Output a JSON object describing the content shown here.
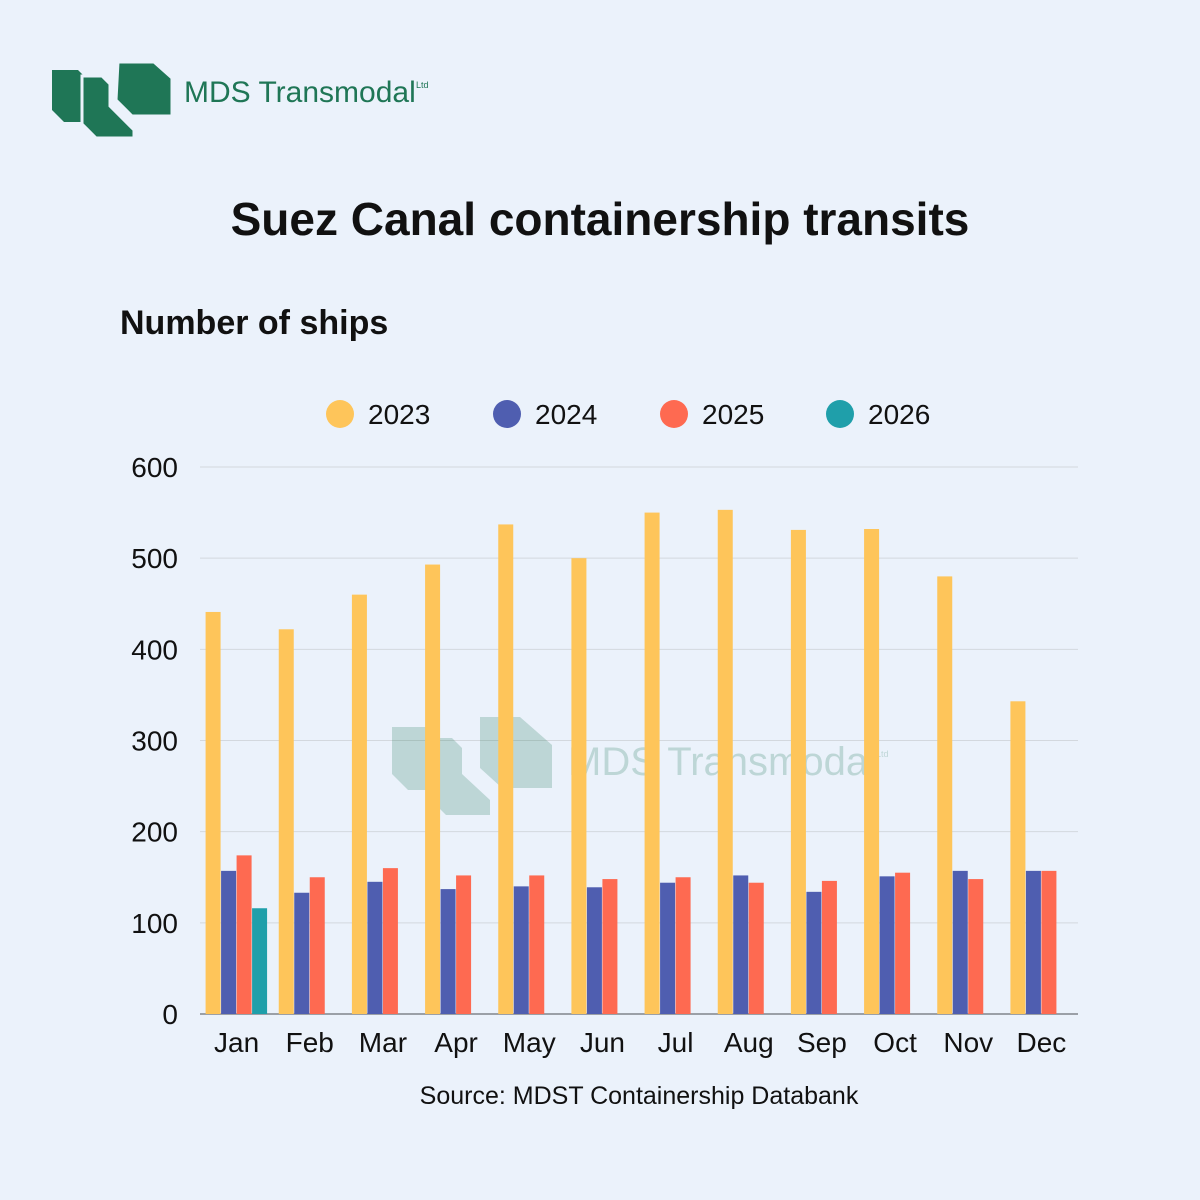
{
  "logo": {
    "name": "MDS Transmodal",
    "suffix": "Ltd",
    "color": "#1f7656"
  },
  "watermark": {
    "name": "MDS Transmodal",
    "suffix": "Ltd"
  },
  "colors": {
    "background": "#ebf2fb",
    "gridline": "#d3d8de",
    "series": [
      "#fec55a",
      "#4f5eb0",
      "#fe6a51",
      "#1f9faa"
    ]
  },
  "chart_data": {
    "type": "bar",
    "title": "Suez Canal containership transits",
    "subtitle": "Number of ships",
    "xlabel": "",
    "ylabel": "",
    "ylim": [
      0,
      600
    ],
    "yticks": [
      0,
      100,
      200,
      300,
      400,
      500,
      600
    ],
    "grid": true,
    "legend_position": "top",
    "source": "Source: MDST Containership Databank",
    "categories": [
      "Jan",
      "Feb",
      "Mar",
      "Apr",
      "May",
      "Jun",
      "Jul",
      "Aug",
      "Sep",
      "Oct",
      "Nov",
      "Dec"
    ],
    "series": [
      {
        "name": "2023",
        "color": "#fec55a",
        "values": [
          441,
          422,
          460,
          493,
          537,
          500,
          550,
          553,
          531,
          532,
          480,
          343
        ]
      },
      {
        "name": "2024",
        "color": "#4f5eb0",
        "values": [
          157,
          133,
          145,
          137,
          140,
          139,
          144,
          152,
          134,
          151,
          157,
          157
        ]
      },
      {
        "name": "2025",
        "color": "#fe6a51",
        "values": [
          174,
          150,
          160,
          152,
          152,
          148,
          150,
          144,
          146,
          155,
          148,
          157
        ]
      },
      {
        "name": "2026",
        "color": "#1f9faa",
        "values": [
          116,
          null,
          null,
          null,
          null,
          null,
          null,
          null,
          null,
          null,
          null,
          null
        ]
      }
    ]
  }
}
